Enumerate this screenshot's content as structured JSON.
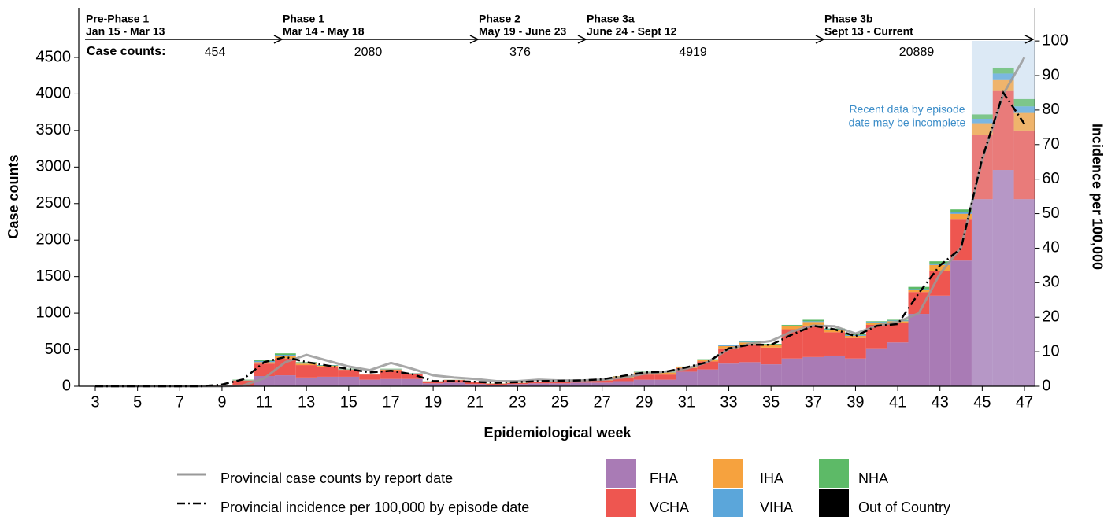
{
  "chart_data": {
    "type": "stacked-bar-line",
    "x_label": "Epidemiological week",
    "y_label": "Case counts",
    "y2_label": "Incidence per 100,000",
    "x": [
      3,
      4,
      5,
      6,
      7,
      8,
      9,
      10,
      11,
      12,
      13,
      14,
      15,
      16,
      17,
      18,
      19,
      20,
      21,
      22,
      23,
      24,
      25,
      26,
      27,
      28,
      29,
      30,
      31,
      32,
      33,
      34,
      35,
      36,
      37,
      38,
      39,
      40,
      41,
      42,
      43,
      44,
      45,
      46,
      47
    ],
    "xlim": [
      2.5,
      47.5
    ],
    "xticks": [
      3,
      5,
      7,
      9,
      11,
      13,
      15,
      17,
      19,
      21,
      23,
      25,
      27,
      29,
      31,
      33,
      35,
      37,
      39,
      41,
      43,
      45,
      47
    ],
    "ylim": [
      0,
      5178
    ],
    "yticks": [
      0,
      500,
      1000,
      1500,
      2000,
      2500,
      3000,
      3500,
      4000,
      4500
    ],
    "y2lim": [
      0,
      109.6
    ],
    "y2ticks": [
      0,
      10,
      20,
      30,
      40,
      50,
      60,
      70,
      80,
      90,
      100
    ],
    "series": [
      {
        "name": "FHA",
        "color": "#a97bb5",
        "values": [
          0,
          0,
          1,
          1,
          1,
          2,
          8,
          5,
          140,
          150,
          120,
          130,
          130,
          90,
          100,
          100,
          40,
          50,
          30,
          20,
          30,
          40,
          40,
          50,
          50,
          70,
          90,
          90,
          200,
          230,
          310,
          330,
          300,
          380,
          400,
          420,
          380,
          520,
          600,
          990,
          1240,
          1720,
          2560,
          2960,
          2560
        ]
      },
      {
        "name": "VCHA",
        "color": "#ee5650",
        "values": [
          0,
          0,
          1,
          1,
          1,
          1,
          7,
          70,
          170,
          230,
          170,
          140,
          95,
          70,
          120,
          70,
          25,
          35,
          25,
          15,
          15,
          15,
          20,
          30,
          30,
          50,
          70,
          70,
          50,
          110,
          210,
          240,
          230,
          400,
          430,
          320,
          280,
          320,
          270,
          300,
          340,
          560,
          880,
          1080,
          940
        ]
      },
      {
        "name": "IHA",
        "color": "#f6a23e",
        "values": [
          0,
          0,
          0,
          0,
          0,
          0,
          0,
          5,
          20,
          30,
          20,
          10,
          5,
          5,
          10,
          5,
          3,
          3,
          3,
          3,
          3,
          3,
          5,
          5,
          5,
          15,
          30,
          30,
          10,
          20,
          30,
          30,
          30,
          40,
          50,
          30,
          30,
          30,
          20,
          30,
          80,
          80,
          160,
          150,
          240
        ]
      },
      {
        "name": "VIHA",
        "color": "#5ba6da",
        "values": [
          0,
          0,
          0,
          0,
          0,
          0,
          0,
          5,
          15,
          20,
          10,
          5,
          5,
          3,
          5,
          3,
          1,
          1,
          1,
          1,
          1,
          1,
          3,
          3,
          3,
          3,
          5,
          5,
          5,
          5,
          10,
          10,
          10,
          10,
          10,
          10,
          10,
          10,
          10,
          10,
          20,
          30,
          60,
          90,
          90
        ]
      },
      {
        "name": "NHA",
        "color": "#5dba67",
        "values": [
          0,
          0,
          0,
          0,
          0,
          0,
          0,
          5,
          15,
          20,
          10,
          5,
          5,
          2,
          5,
          2,
          1,
          1,
          1,
          1,
          1,
          1,
          2,
          2,
          2,
          2,
          5,
          5,
          5,
          5,
          10,
          10,
          10,
          10,
          20,
          10,
          10,
          10,
          10,
          30,
          30,
          30,
          60,
          80,
          100
        ]
      },
      {
        "name": "Out of Country",
        "color": "#000000",
        "values": [
          0,
          0,
          0,
          0,
          0,
          0,
          0,
          0,
          0,
          0,
          0,
          0,
          0,
          0,
          0,
          0,
          0,
          0,
          0,
          0,
          0,
          0,
          0,
          0,
          0,
          0,
          0,
          0,
          0,
          0,
          0,
          0,
          0,
          0,
          0,
          0,
          0,
          0,
          0,
          0,
          0,
          0,
          0,
          0,
          0
        ]
      },
      {
        "name": "Provincial case counts by report date",
        "color": "#999999",
        "line": "solid",
        "values": [
          0,
          0,
          0,
          0,
          0,
          0,
          0,
          10,
          110,
          330,
          430,
          350,
          270,
          220,
          320,
          240,
          150,
          120,
          100,
          70,
          70,
          90,
          80,
          80,
          90,
          120,
          170,
          200,
          240,
          330,
          510,
          580,
          620,
          750,
          830,
          820,
          720,
          830,
          880,
          1000,
          1540,
          1900,
          3100,
          4000,
          4500
        ]
      },
      {
        "name": "Provincial incidence per 100,000 by episode date",
        "color": "#000000",
        "line": "dashdot",
        "axis": "y2",
        "values": [
          0,
          0,
          0,
          0,
          0,
          0,
          0.5,
          2,
          7,
          8.5,
          7,
          6,
          5,
          4,
          4.5,
          3.5,
          1.5,
          1.5,
          1.3,
          1,
          1.2,
          1.5,
          1.6,
          1.7,
          2,
          3,
          4,
          4.2,
          5.5,
          7,
          11,
          12,
          12,
          15,
          17.5,
          16.5,
          14.5,
          17.5,
          18,
          27,
          35,
          40,
          66,
          85,
          76
        ]
      }
    ],
    "annotation": [
      "Recent data by episode",
      "date may be incomplete"
    ],
    "case_counts_label": "Case counts:",
    "phases": [
      {
        "name": "Pre-Phase 1",
        "dates": "Jan 15 - Mar 13",
        "count": 454
      },
      {
        "name": "Phase 1",
        "dates": "Mar 14 - May 18",
        "count": 2080
      },
      {
        "name": "Phase 2",
        "dates": "May 19 - June 23",
        "count": 376
      },
      {
        "name": "Phase 3a",
        "dates": "June 24 - Sept 12",
        "count": 4919
      },
      {
        "name": "Phase 3b",
        "dates": "Sept 13 - Current",
        "count": 20889
      }
    ]
  }
}
